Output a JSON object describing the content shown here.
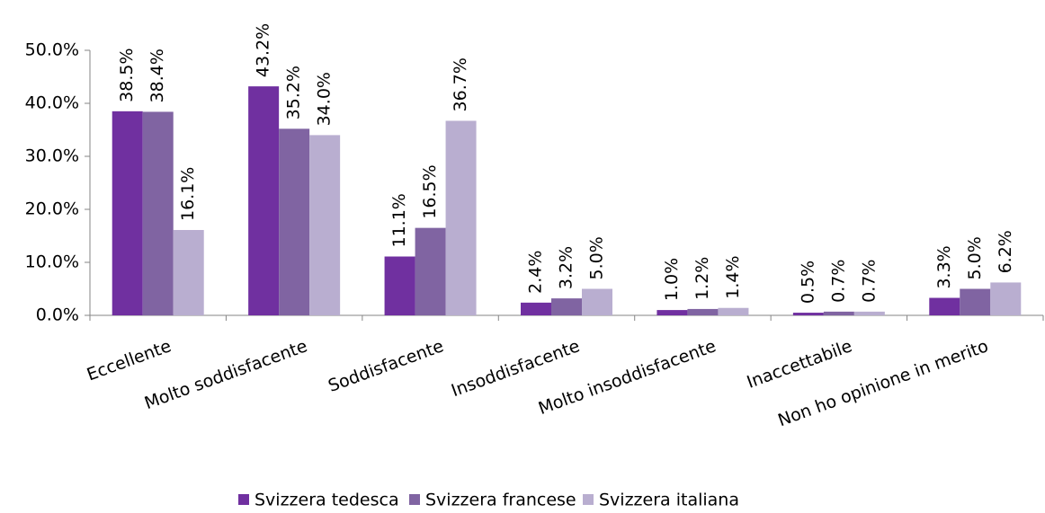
{
  "chart_data": {
    "type": "bar",
    "categories": [
      "Eccellente",
      "Molto soddisfacente",
      "Soddisfacente",
      "Insoddisfacente",
      "Molto insoddisfacente",
      "Inaccettabile",
      "Non ho opinione in merito"
    ],
    "series": [
      {
        "name": "Svizzera tedesca",
        "color": "#7030a0",
        "values": [
          38.5,
          43.2,
          11.1,
          2.4,
          1.0,
          0.5,
          3.3
        ],
        "value_labels": [
          "38.5%",
          "43.2%",
          "11.1%",
          "2.4%",
          "1.0%",
          "0.5%",
          "3.3%"
        ]
      },
      {
        "name": "Svizzera francese",
        "color": "#8064a2",
        "values": [
          38.4,
          35.2,
          16.5,
          3.2,
          1.2,
          0.7,
          5.0
        ],
        "value_labels": [
          "38.4%",
          "35.2%",
          "16.5%",
          "3.2%",
          "1.2%",
          "0.7%",
          "5.0%"
        ]
      },
      {
        "name": "Svizzera italiana",
        "color": "#b9aed0",
        "values": [
          16.1,
          34.0,
          36.7,
          5.0,
          1.4,
          0.7,
          6.2
        ],
        "value_labels": [
          "16.1%",
          "34.0%",
          "36.7%",
          "5.0%",
          "1.4%",
          "0.7%",
          "6.2%"
        ]
      }
    ],
    "ylim": [
      0,
      50
    ],
    "yticks": [
      {
        "value": 0,
        "label": "0.0%"
      },
      {
        "value": 10,
        "label": "10.0%"
      },
      {
        "value": 20,
        "label": "20.0%"
      },
      {
        "value": 30,
        "label": "30.0%"
      },
      {
        "value": 40,
        "label": "40.0%"
      },
      {
        "value": 50,
        "label": "50.0%"
      }
    ],
    "legend": "bottom"
  }
}
